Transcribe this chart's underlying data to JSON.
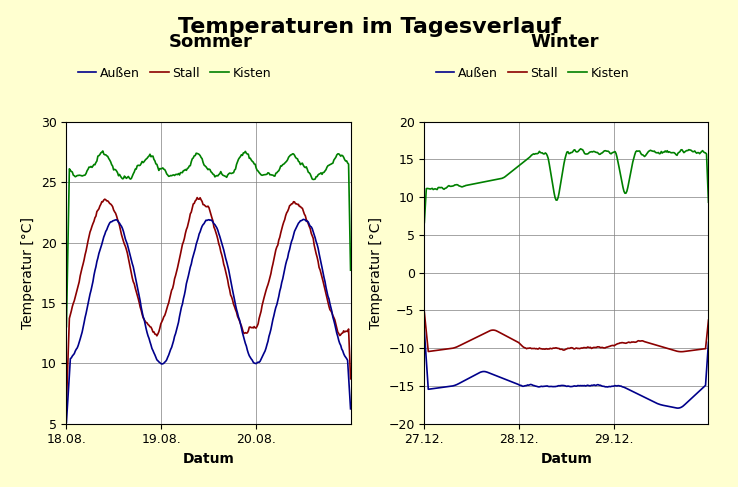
{
  "title": "Temperaturen im Tagesverlauf",
  "background_color": "#FFFFD0",
  "plot_bg_color": "#FFFFFF",
  "left_title": "Sommer",
  "right_title": "Winter",
  "ylabel": "Temperatur [°C]",
  "xlabel": "Datum",
  "left_xlabels": [
    "18.08.",
    "19.08.",
    "20.08."
  ],
  "right_xlabels": [
    "27.12.",
    "28.12.",
    "29.12."
  ],
  "left_ylim": [
    5,
    30
  ],
  "right_ylim": [
    -20,
    20
  ],
  "left_yticks": [
    5,
    10,
    15,
    20,
    25,
    30
  ],
  "right_yticks": [
    -20,
    -15,
    -10,
    -5,
    0,
    5,
    10,
    15,
    20
  ],
  "colors": {
    "aussen": "#00008B",
    "stall": "#8B0000",
    "kisten": "#008000"
  },
  "legend_labels": [
    "Außen",
    "Stall",
    "Kisten"
  ],
  "linewidth": 1.2
}
